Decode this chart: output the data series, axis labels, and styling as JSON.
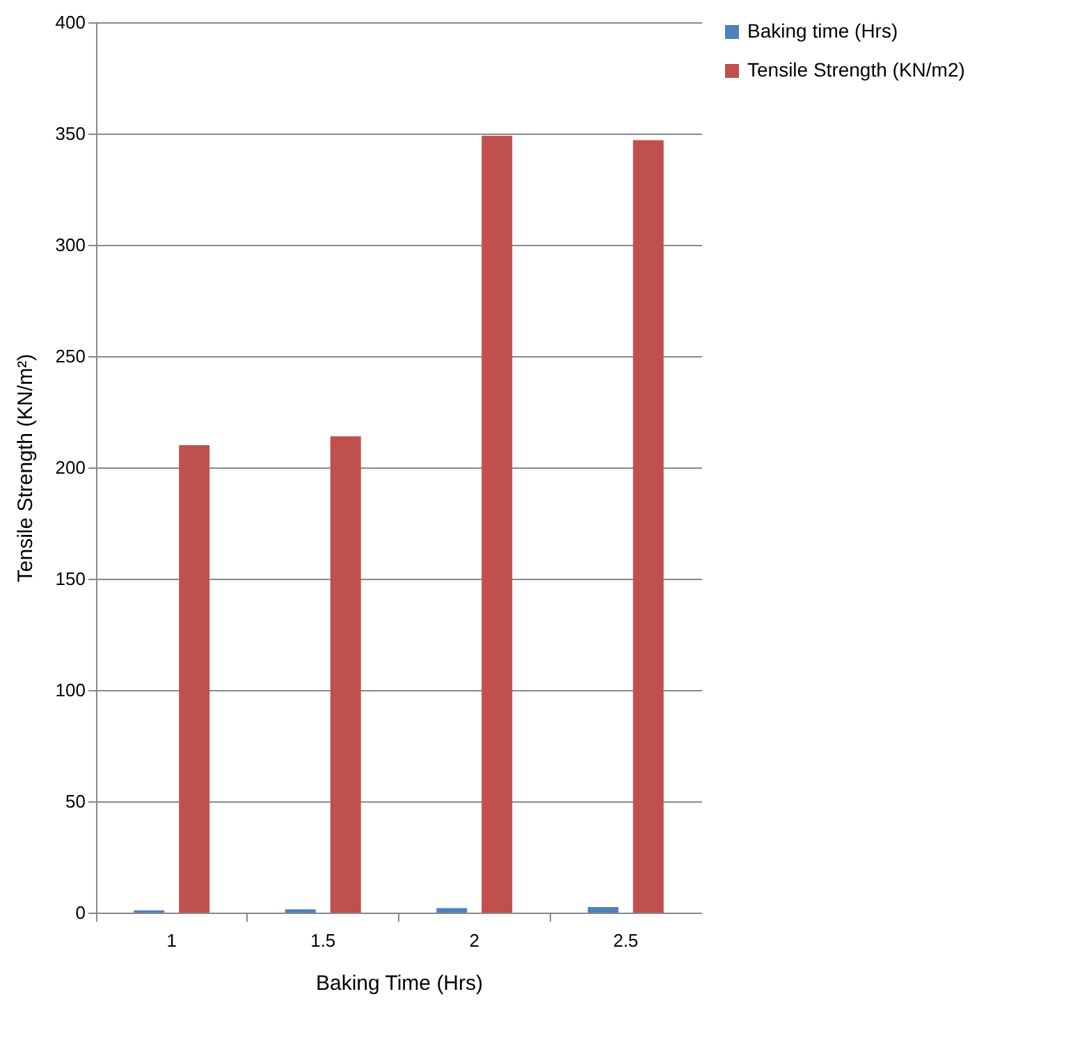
{
  "chart_data": {
    "type": "bar",
    "xlabel": "Baking Time (Hrs)",
    "ylabel": "Tensile Strength (KN/m²)",
    "categories": [
      "1",
      "1.5",
      "2",
      "2.5"
    ],
    "series": [
      {
        "name": "Baking time (Hrs)",
        "color": "#4f81bd",
        "values": [
          1,
          1.5,
          2,
          2.5
        ]
      },
      {
        "name": "Tensile Strength (KN/m2)",
        "color": "#c0504d",
        "values": [
          210,
          214,
          349,
          347
        ]
      }
    ],
    "ylim": [
      0,
      400
    ],
    "yticks": [
      0,
      50,
      100,
      150,
      200,
      250,
      300,
      350,
      400
    ],
    "grid": "y",
    "legend": "right"
  }
}
